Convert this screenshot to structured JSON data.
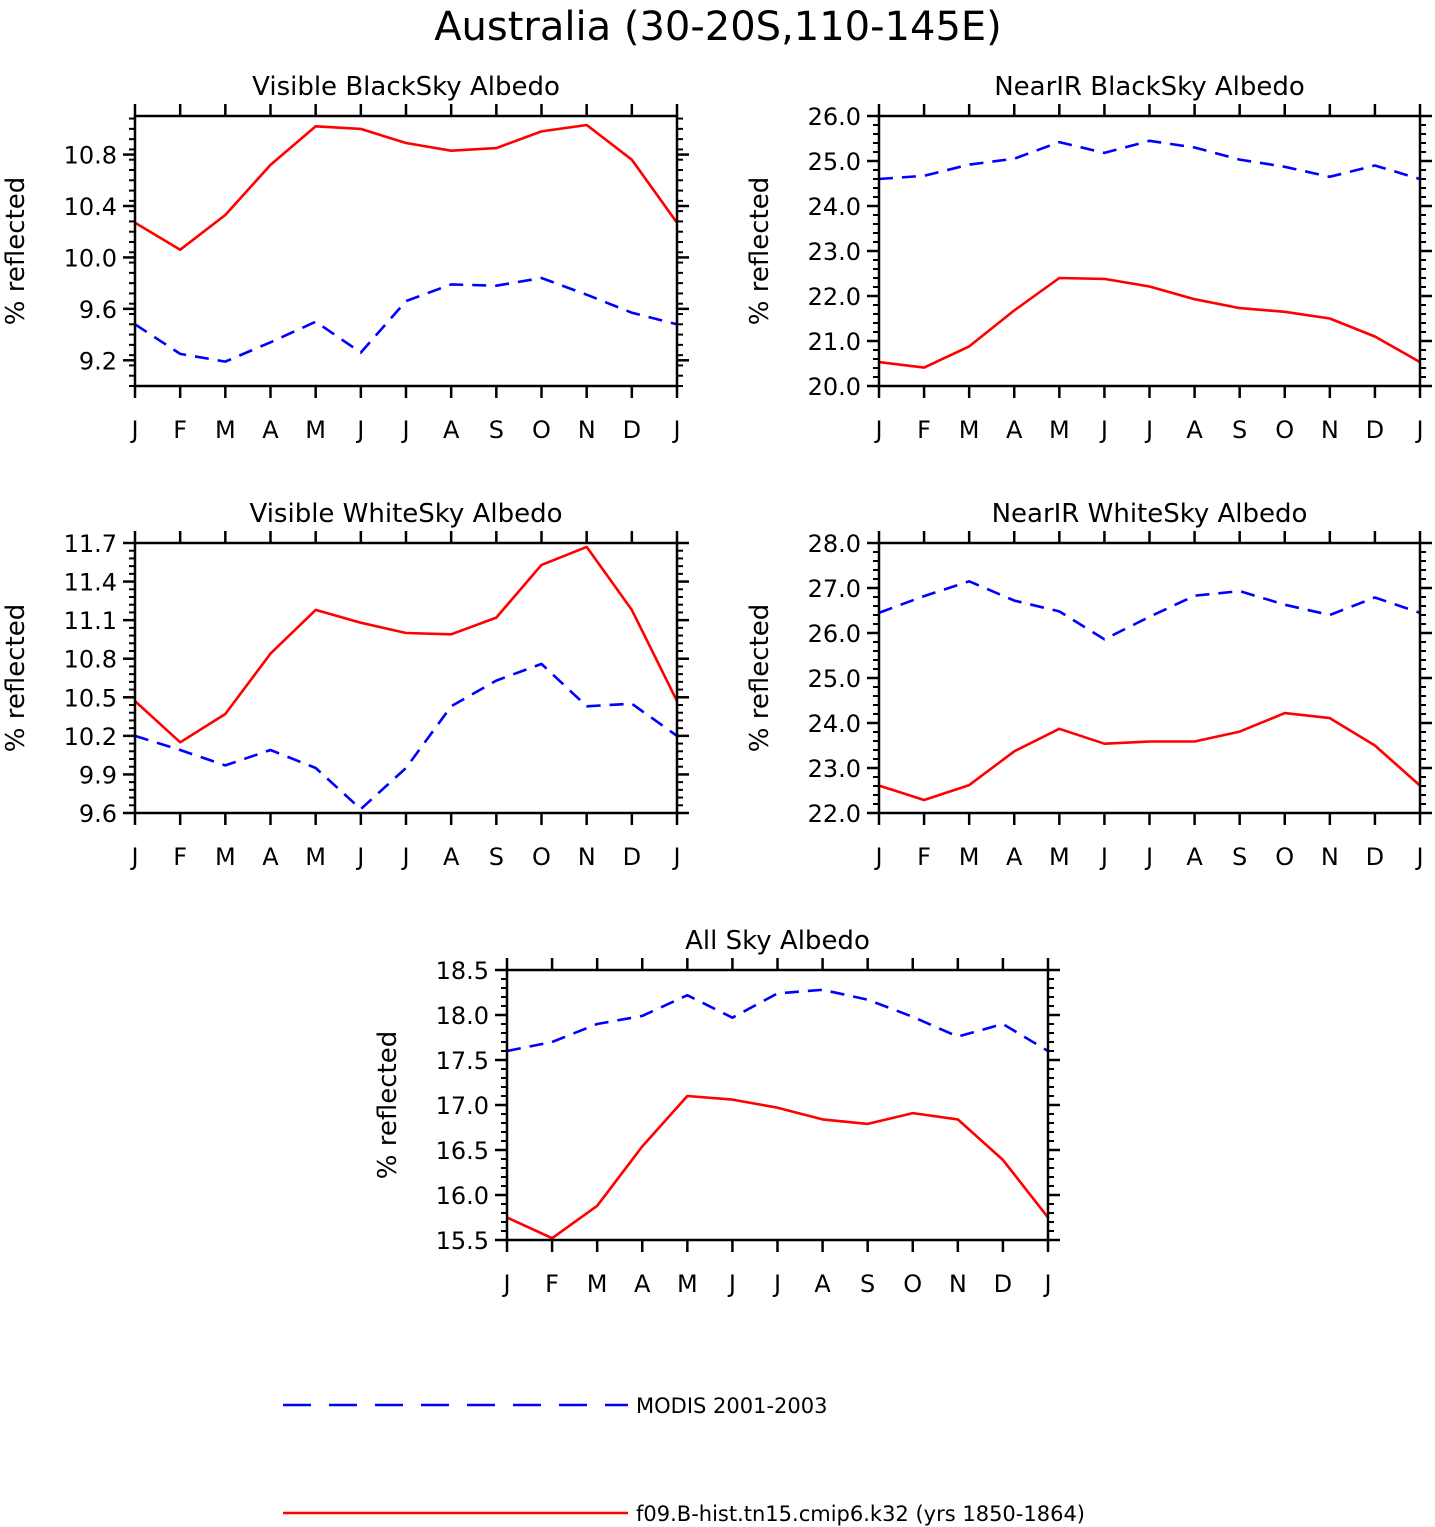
{
  "title": "Australia (30-20S,110-145E)",
  "colors": {
    "modis": "#0000ff",
    "model": "#ff0000",
    "axis": "#000000"
  },
  "legend": {
    "entries": [
      {
        "series": "modis",
        "label": "MODIS 2001-2003",
        "style": "dashed"
      },
      {
        "series": "model",
        "label": "f09.B-hist.tn15.cmip6.k32 (yrs 1850-1864)",
        "style": "solid"
      }
    ]
  },
  "chart_data": [
    {
      "type": "line",
      "title": "Visible BlackSky Albedo",
      "ylabel": "% reflected",
      "categories": [
        "J",
        "F",
        "M",
        "A",
        "M",
        "J",
        "J",
        "A",
        "S",
        "O",
        "N",
        "D",
        "J"
      ],
      "ylim": [
        9.0,
        11.1
      ],
      "yticks": [
        "9.2",
        "9.6",
        "10.0",
        "10.4",
        "10.8"
      ],
      "series": [
        {
          "name": "MODIS 2001-2003",
          "values": [
            9.48,
            9.25,
            9.19,
            9.34,
            9.5,
            9.26,
            9.66,
            9.79,
            9.78,
            9.84,
            9.71,
            9.57,
            9.48
          ]
        },
        {
          "name": "f09.B-hist.tn15.cmip6.k32 (yrs 1850-1864)",
          "values": [
            10.27,
            10.06,
            10.33,
            10.72,
            11.02,
            11.0,
            10.89,
            10.83,
            10.85,
            10.98,
            11.03,
            10.76,
            10.27
          ]
        }
      ]
    },
    {
      "type": "line",
      "title": "NearIR BlackSky Albedo",
      "ylabel": "% reflected",
      "categories": [
        "J",
        "F",
        "M",
        "A",
        "M",
        "J",
        "J",
        "A",
        "S",
        "O",
        "N",
        "D",
        "J"
      ],
      "ylim": [
        20.0,
        26.0
      ],
      "yticks": [
        "20.0",
        "21.0",
        "22.0",
        "23.0",
        "24.0",
        "25.0",
        "26.0"
      ],
      "series": [
        {
          "name": "MODIS 2001-2003",
          "values": [
            24.6,
            24.67,
            24.92,
            25.05,
            25.42,
            25.18,
            25.45,
            25.3,
            25.03,
            24.87,
            24.65,
            24.9,
            24.6
          ]
        },
        {
          "name": "f09.B-hist.tn15.cmip6.k32 (yrs 1850-1864)",
          "values": [
            20.53,
            20.41,
            20.88,
            21.68,
            22.4,
            22.38,
            22.21,
            21.93,
            21.73,
            21.65,
            21.5,
            21.1,
            20.53
          ]
        }
      ]
    },
    {
      "type": "line",
      "title": "Visible WhiteSky Albedo",
      "ylabel": "% reflected",
      "categories": [
        "J",
        "F",
        "M",
        "A",
        "M",
        "J",
        "J",
        "A",
        "S",
        "O",
        "N",
        "D",
        "J"
      ],
      "ylim": [
        9.6,
        11.7
      ],
      "yticks": [
        "9.6",
        "9.9",
        "10.2",
        "10.5",
        "10.8",
        "11.1",
        "11.4",
        "11.7"
      ],
      "series": [
        {
          "name": "MODIS 2001-2003",
          "values": [
            10.2,
            10.09,
            9.97,
            10.09,
            9.95,
            9.63,
            9.95,
            10.43,
            10.63,
            10.76,
            10.43,
            10.45,
            10.2
          ]
        },
        {
          "name": "f09.B-hist.tn15.cmip6.k32 (yrs 1850-1864)",
          "values": [
            10.47,
            10.15,
            10.37,
            10.84,
            11.18,
            11.08,
            11.0,
            10.99,
            11.12,
            11.53,
            11.67,
            11.18,
            10.47
          ]
        }
      ]
    },
    {
      "type": "line",
      "title": "NearIR WhiteSky Albedo",
      "ylabel": "% reflected",
      "categories": [
        "J",
        "F",
        "M",
        "A",
        "M",
        "J",
        "J",
        "A",
        "S",
        "O",
        "N",
        "D",
        "J"
      ],
      "ylim": [
        22.0,
        28.0
      ],
      "yticks": [
        "22.0",
        "23.0",
        "24.0",
        "25.0",
        "26.0",
        "27.0",
        "28.0"
      ],
      "series": [
        {
          "name": "MODIS 2001-2003",
          "values": [
            26.45,
            26.82,
            27.15,
            26.72,
            26.48,
            25.86,
            26.36,
            26.83,
            26.93,
            26.63,
            26.4,
            26.79,
            26.45
          ]
        },
        {
          "name": "f09.B-hist.tn15.cmip6.k32 (yrs 1850-1864)",
          "values": [
            22.61,
            22.29,
            22.62,
            23.37,
            23.87,
            23.54,
            23.59,
            23.59,
            23.81,
            24.22,
            24.11,
            23.5,
            22.61
          ]
        }
      ]
    },
    {
      "type": "line",
      "title": "All Sky Albedo",
      "ylabel": "% reflected",
      "categories": [
        "J",
        "F",
        "M",
        "A",
        "M",
        "J",
        "J",
        "A",
        "S",
        "O",
        "N",
        "D",
        "J"
      ],
      "ylim": [
        15.5,
        18.5
      ],
      "yticks": [
        "15.5",
        "16.0",
        "16.5",
        "17.0",
        "17.5",
        "18.0",
        "18.5"
      ],
      "series": [
        {
          "name": "MODIS 2001-2003",
          "values": [
            17.6,
            17.7,
            17.9,
            17.99,
            18.22,
            17.97,
            18.24,
            18.28,
            18.17,
            17.98,
            17.76,
            17.9,
            17.6
          ]
        },
        {
          "name": "f09.B-hist.tn15.cmip6.k32 (yrs 1850-1864)",
          "values": [
            15.75,
            15.52,
            15.88,
            16.54,
            17.1,
            17.06,
            16.97,
            16.84,
            16.79,
            16.91,
            16.84,
            16.39,
            15.75
          ]
        }
      ]
    }
  ]
}
